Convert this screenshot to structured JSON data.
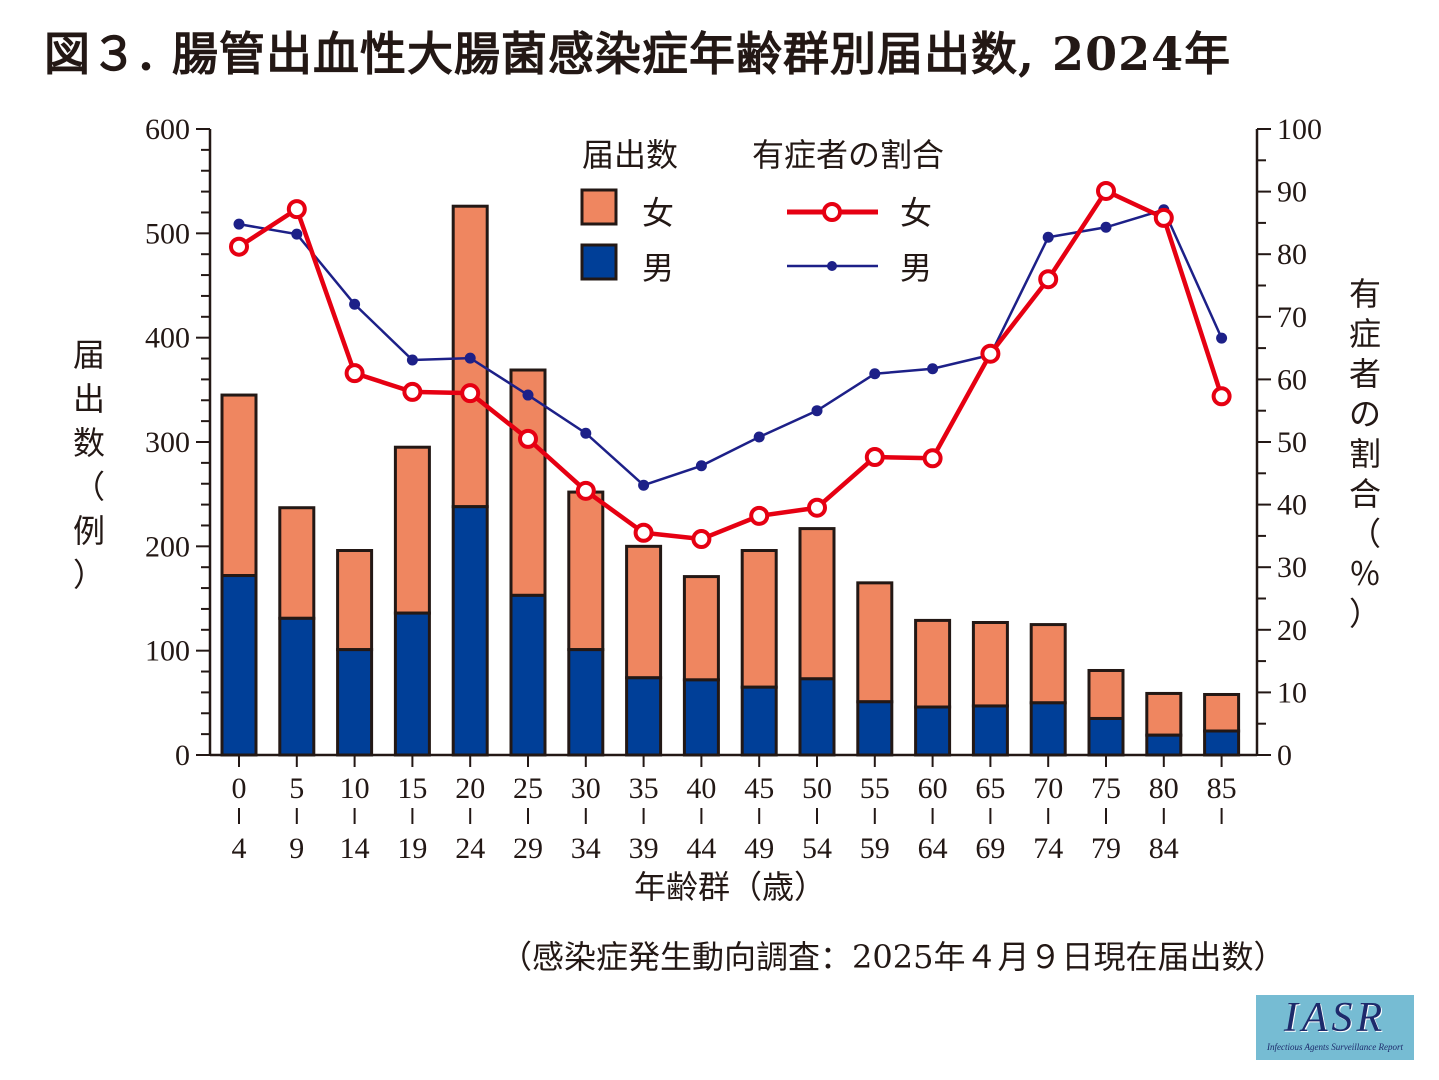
{
  "title": "図３. 腸管出血性大腸菌感染症年齢群別届出数, 2024年",
  "source_note": "（感染症発生動向調査：2025年４月９日現在届出数）",
  "logo": {
    "main": "IASR",
    "sub": "Infectious Agents Surveillance Report"
  },
  "legend": {
    "bars_header": "届出数",
    "lines_header": "有症者の割合",
    "female_bar": "女",
    "male_bar": "男",
    "female_line": "女",
    "male_line": "男"
  },
  "colors": {
    "female_bar": "#ef8660",
    "male_bar": "#003f98",
    "female_line": "#e60012",
    "male_line": "#1d2088",
    "axis": "#231815"
  },
  "chart_data": {
    "type": "bar+line",
    "title": "図３. 腸管出血性大腸菌感染症年齢群別届出数, 2024年",
    "xlabel": "年齢群（歳）",
    "ylabel_left": "届出数（例）",
    "ylabel_right": "有症者の割合（％）",
    "ylim_left": [
      0,
      600
    ],
    "ylim_right": [
      0,
      100
    ],
    "yticks_left": [
      0,
      100,
      200,
      300,
      400,
      500,
      600
    ],
    "yticks_right": [
      0,
      10,
      20,
      30,
      40,
      50,
      60,
      70,
      80,
      90,
      100
    ],
    "grid": false,
    "legend_position": "top-center",
    "categories": [
      {
        "from": "0",
        "to": "4"
      },
      {
        "from": "5",
        "to": "9"
      },
      {
        "from": "10",
        "to": "14"
      },
      {
        "from": "15",
        "to": "19"
      },
      {
        "from": "20",
        "to": "24"
      },
      {
        "from": "25",
        "to": "29"
      },
      {
        "from": "30",
        "to": "34"
      },
      {
        "from": "35",
        "to": "39"
      },
      {
        "from": "40",
        "to": "44"
      },
      {
        "from": "45",
        "to": "49"
      },
      {
        "from": "50",
        "to": "54"
      },
      {
        "from": "55",
        "to": "59"
      },
      {
        "from": "60",
        "to": "64"
      },
      {
        "from": "65",
        "to": "69"
      },
      {
        "from": "70",
        "to": "74"
      },
      {
        "from": "75",
        "to": "79"
      },
      {
        "from": "80",
        "to": "84"
      },
      {
        "from": "85",
        "to": ""
      }
    ],
    "bar_series": [
      {
        "name": "男",
        "stack": "届出数",
        "values": [
          172,
          131,
          101,
          136,
          238,
          153,
          101,
          74,
          72,
          65,
          73,
          51,
          46,
          47,
          50,
          35,
          19,
          23
        ]
      },
      {
        "name": "女",
        "stack": "届出数",
        "values": [
          173,
          106,
          95,
          159,
          288,
          216,
          151,
          126,
          99,
          131,
          144,
          114,
          83,
          80,
          75,
          46,
          40,
          35
        ]
      }
    ],
    "line_series": [
      {
        "name": "女",
        "axis": "right",
        "values": [
          81.2,
          87.2,
          61.0,
          58.0,
          57.8,
          50.5,
          42.2,
          35.5,
          34.5,
          38.2,
          39.5,
          47.6,
          47.4,
          64.1,
          76.0,
          90.1,
          85.8,
          57.3
        ]
      },
      {
        "name": "男",
        "axis": "right",
        "values": [
          84.8,
          83.2,
          72.0,
          63.1,
          63.4,
          57.5,
          51.4,
          43.1,
          46.2,
          50.8,
          55.0,
          60.9,
          61.7,
          63.9,
          82.7,
          84.3,
          87.1,
          66.6
        ]
      }
    ]
  }
}
